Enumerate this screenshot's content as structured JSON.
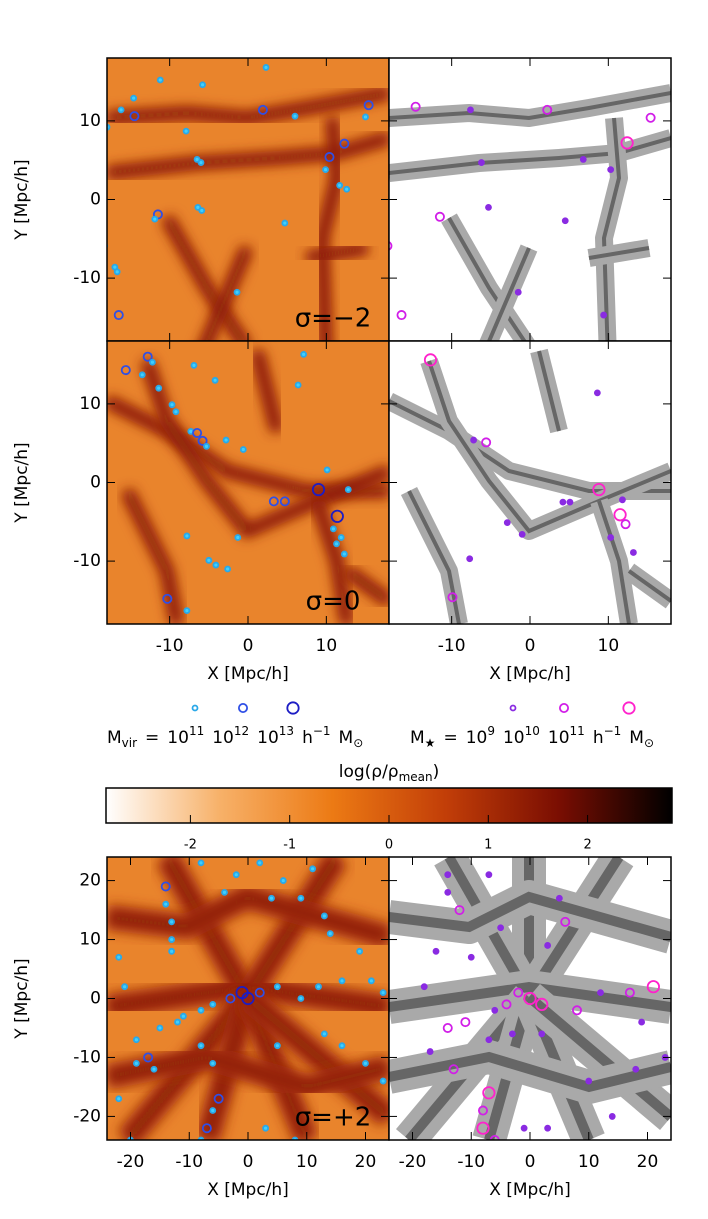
{
  "chart_data": {
    "type": "scatter",
    "xlabel": "X [Mpc/h]",
    "ylabel": "Y [Mpc/h]",
    "rows": [
      {
        "label": "σ=−2",
        "xlim": [
          -18,
          18
        ],
        "ylim": [
          -18,
          18
        ],
        "xticks": [
          -10,
          0,
          10
        ],
        "yticks": [
          -10,
          0,
          10
        ],
        "halos": {
          "x": [
            -14.6,
            -16.2,
            -14.5,
            -18,
            -11.2,
            -5.8,
            2.3,
            1.9,
            -7.9,
            6.0,
            10.4,
            12.3,
            9.9,
            11.7,
            12.6,
            15.4,
            15.0,
            -6,
            -6.5,
            -11.5,
            -11.9,
            -6.4,
            -5.9,
            4.7,
            -17,
            -16.7,
            -18.3,
            -1.4,
            -16.5
          ],
          "y": [
            12.9,
            11.4,
            10.6,
            9.2,
            15.2,
            14.6,
            16.8,
            11.4,
            8.7,
            10.6,
            5.4,
            7.1,
            3.8,
            1.8,
            1.3,
            12.0,
            10.5,
            4.7,
            5.1,
            -1.9,
            -2.5,
            -1,
            -1.4,
            -3,
            -8.6,
            -9.2,
            -5.9,
            -11.8,
            -14.7
          ],
          "mass": [
            11,
            11,
            12,
            11,
            11,
            11,
            11,
            12,
            11,
            11,
            12,
            12,
            11,
            11,
            11,
            12,
            11,
            11,
            11,
            12,
            11,
            11,
            11,
            11,
            11,
            11,
            11,
            11,
            12
          ]
        },
        "galaxies": {
          "x": [
            2.2,
            -7.6,
            -14.6,
            12.4,
            15.4,
            6.8,
            10.3,
            -6.2,
            -11.5,
            -5.3,
            4.5,
            -18.2,
            -1.5,
            -16.4,
            9.4
          ],
          "y": [
            11.4,
            11.4,
            11.8,
            7.2,
            10.4,
            5.1,
            3.8,
            4.7,
            -2.2,
            -1,
            -2.7,
            -5.9,
            -11.8,
            -14.7,
            -14.7
          ],
          "mass": [
            10,
            9,
            10,
            11,
            10,
            9,
            9,
            9,
            10,
            9,
            9,
            10,
            9,
            10,
            9
          ]
        }
      },
      {
        "label": "σ=0",
        "xlim": [
          -18,
          18
        ],
        "ylim": [
          -18,
          18
        ],
        "xticks": [
          -10,
          0,
          10
        ],
        "yticks": [
          -10,
          0,
          10
        ],
        "halos": {
          "x": [
            -15.6,
            -12.8,
            -12.2,
            -13.5,
            -11.4,
            -6.9,
            -9.7,
            -9.2,
            -4.2,
            -7.3,
            -6.5,
            -5.8,
            -5.3,
            -2.8,
            -0.6,
            3.3,
            4.7,
            9.0,
            11.4,
            10.9,
            11.9,
            11.3,
            12.3,
            10.1,
            12.8,
            -1.3,
            -5,
            -4.1,
            -2.6,
            -7.8,
            -10.3,
            -7.8,
            6.4,
            7.1
          ],
          "y": [
            14.3,
            16.0,
            15.3,
            13.7,
            12.0,
            14.9,
            9.9,
            9.0,
            13.0,
            6.5,
            6.3,
            5.3,
            4.6,
            5.4,
            4.2,
            -2.4,
            -2.4,
            -0.9,
            -4.3,
            -5.9,
            -7.0,
            -7.8,
            -9.1,
            1.6,
            -0.9,
            -7.0,
            -9.9,
            -10.5,
            -11,
            -6.8,
            -14.8,
            -16.3,
            12.4,
            16.3
          ],
          "mass": [
            12,
            12,
            11,
            11,
            11,
            11,
            11,
            11,
            11,
            11,
            12,
            12,
            11,
            11,
            11,
            12,
            12,
            13,
            13,
            11,
            11,
            11,
            11,
            11,
            11,
            11,
            11,
            11,
            11,
            11,
            12,
            11,
            11,
            11
          ]
        },
        "galaxies": {
          "x": [
            -12.7,
            -7.2,
            -5.6,
            8.6,
            11.8,
            8.8,
            11.5,
            12.2,
            10.3,
            4.2,
            5.1,
            -1,
            -2.9,
            -7.7,
            -9.9,
            13.2
          ],
          "y": [
            15.6,
            5.4,
            5.1,
            11.4,
            -2.2,
            -0.9,
            -4.1,
            -5.3,
            -7.0,
            -2.5,
            -2.5,
            -6.6,
            -5.1,
            -9.7,
            -14.6,
            -8.9
          ],
          "mass": [
            11,
            9,
            10,
            9,
            9,
            11,
            11,
            10,
            9,
            9,
            9,
            9,
            9,
            9,
            10,
            9
          ]
        }
      },
      {
        "label": "σ=+2",
        "xlim": [
          -24,
          24
        ],
        "ylim": [
          -24,
          24
        ],
        "xticks": [
          -20,
          -10,
          0,
          10,
          20
        ],
        "yticks": [
          -20,
          -10,
          0,
          10,
          20
        ],
        "halos": {
          "x": [
            -14,
            -14,
            -13,
            -13,
            -13,
            -8,
            -4,
            -2,
            4,
            2,
            6,
            9,
            11,
            13,
            14,
            19,
            16,
            21,
            23,
            12,
            9,
            5,
            2,
            0,
            -1,
            -3,
            -6,
            -8,
            -11,
            -12,
            -15,
            -19,
            -17,
            -16,
            -19,
            -21,
            -22,
            -8,
            -6,
            5,
            13,
            16,
            20,
            23,
            -5,
            -6,
            -7,
            -8,
            3,
            8,
            -20,
            -22
          ],
          "y": [
            19,
            16,
            13,
            10,
            8,
            23,
            18,
            21,
            17,
            23,
            20,
            17,
            22,
            14,
            11,
            8,
            3,
            3,
            1,
            2,
            0,
            2,
            1,
            0,
            1,
            0,
            -1,
            -2,
            -3,
            -4,
            -5,
            -7,
            -10,
            -12,
            -11,
            2,
            7,
            -8,
            -11,
            -8,
            -6,
            -8,
            -11,
            -14,
            -17,
            -19,
            -22,
            -24,
            -22,
            -24,
            -24,
            -17
          ],
          "mass": [
            12,
            11,
            11,
            11,
            11,
            11,
            11,
            11,
            11,
            11,
            11,
            11,
            11,
            11,
            11,
            11,
            11,
            11,
            11,
            11,
            11,
            11,
            12,
            13,
            13,
            12,
            11,
            11,
            11,
            11,
            11,
            11,
            12,
            11,
            11,
            11,
            11,
            11,
            11,
            11,
            11,
            11,
            11,
            11,
            12,
            11,
            12,
            11,
            11,
            11,
            11,
            11
          ]
        },
        "galaxies": {
          "x": [
            -14,
            -14,
            -12,
            -7,
            -5,
            5,
            6,
            3,
            -10,
            -16,
            -18,
            0,
            2,
            -2,
            -4,
            -6,
            -11,
            -14,
            -17,
            -13,
            -7,
            -3,
            2,
            8,
            12,
            17,
            21,
            19,
            23,
            18,
            -7,
            -8,
            -8,
            -6,
            3,
            -1,
            10,
            14
          ],
          "y": [
            21,
            18,
            15,
            21,
            12,
            17,
            13,
            9,
            7,
            8,
            2,
            0,
            -1,
            1,
            -1,
            -2,
            -4,
            -5,
            -9,
            -12,
            -7,
            -6,
            -6,
            -2,
            1,
            1,
            2,
            -4,
            -10,
            -12,
            -16,
            -19,
            -22,
            -24,
            -22,
            -22,
            -14,
            -20
          ],
          "mass": [
            9,
            9,
            10,
            9,
            9,
            9,
            10,
            9,
            9,
            9,
            9,
            11,
            11,
            10,
            10,
            9,
            10,
            10,
            9,
            10,
            9,
            9,
            9,
            10,
            9,
            10,
            11,
            9,
            9,
            9,
            11,
            10,
            11,
            10,
            9,
            9,
            9,
            9
          ]
        }
      }
    ],
    "legend": {
      "eq": "=",
      "base": "10",
      "unit": "h",
      "unit_exp": "−1",
      "unit_sym": "M",
      "unit_sub": "⊙",
      "halo": {
        "name": "M",
        "sub": "vir",
        "masses": [
          11,
          12,
          13
        ],
        "colors": [
          "#2aa8e8",
          "#2f4fe6",
          "#1d1dc4"
        ]
      },
      "galaxy": {
        "name": "M",
        "sub": "★",
        "masses": [
          9,
          10,
          11
        ],
        "colors": [
          "#8a2be2",
          "#d11ee8",
          "#ff22cc"
        ]
      }
    },
    "colorbar": {
      "label": "log(ρ/ρ",
      "label_sub": "mean",
      "label_end": ")",
      "lim": [
        -2.85,
        2.85
      ],
      "ticks": [
        -2,
        -1,
        0,
        1,
        2
      ],
      "colors": [
        "#ffffff",
        "#f7b169",
        "#ec7a14",
        "#c23e08",
        "#7a0e02",
        "#000000"
      ]
    }
  }
}
